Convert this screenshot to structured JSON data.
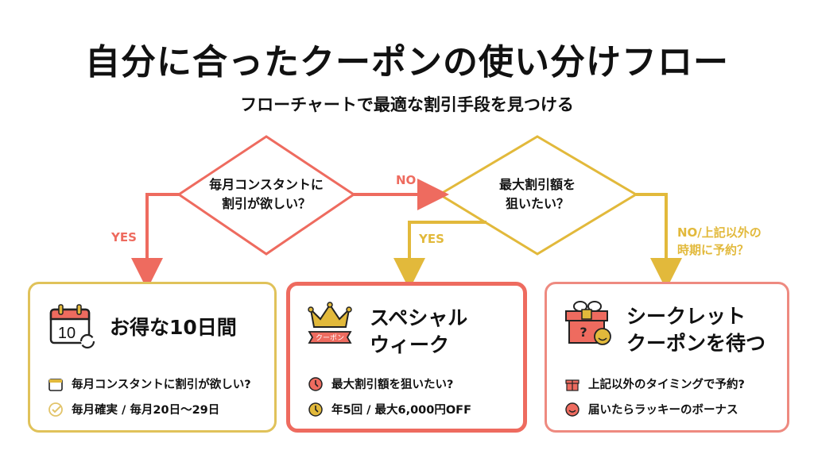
{
  "title": "自分に合ったクーポンの使い分けフロー",
  "subtitle": "フローチャートで最適な割引手段を見つける",
  "colors": {
    "red": "#ee6b5f",
    "gold": "#e2b93b"
  },
  "decisions": [
    {
      "line1": "毎月コンスタントに",
      "line2": "割引が欲しい？"
    },
    {
      "line1": "最大割引額を",
      "line2": "狙いたい？"
    }
  ],
  "edges": {
    "d1_yes": "YES",
    "d1_no": "NO",
    "d2_yes": "YES",
    "d2_no_line1": "NO/上記以外の",
    "d2_no_line2": "時期に予約？"
  },
  "cards": [
    {
      "title": "お得な10日間",
      "icon": "calendar-refresh-icon",
      "calendar_number": "10",
      "rows": [
        {
          "icon": "calendar-icon",
          "text": "毎月コンスタントに割引が欲しい?"
        },
        {
          "icon": "check-circle-icon",
          "text": "毎月確実 / 毎月20日〜29日"
        }
      ]
    },
    {
      "title_line1": "スペシャル",
      "title_line2": "ウィーク",
      "icon": "crown-coupon-icon",
      "ticket_text": "クーポン",
      "rows": [
        {
          "icon": "clock-icon",
          "text": "最大割引額を狙いたい?"
        },
        {
          "icon": "clock-icon",
          "text": "年5回 / 最大6,000円OFF"
        }
      ]
    },
    {
      "title_line1": "シークレット",
      "title_line2": "クーポンを待つ",
      "icon": "secret-gift-icon",
      "rows": [
        {
          "icon": "gift-icon",
          "text": "上記以外のタイミングで予約?"
        },
        {
          "icon": "smile-icon",
          "text": "届いたらラッキーのボーナス"
        }
      ]
    }
  ]
}
